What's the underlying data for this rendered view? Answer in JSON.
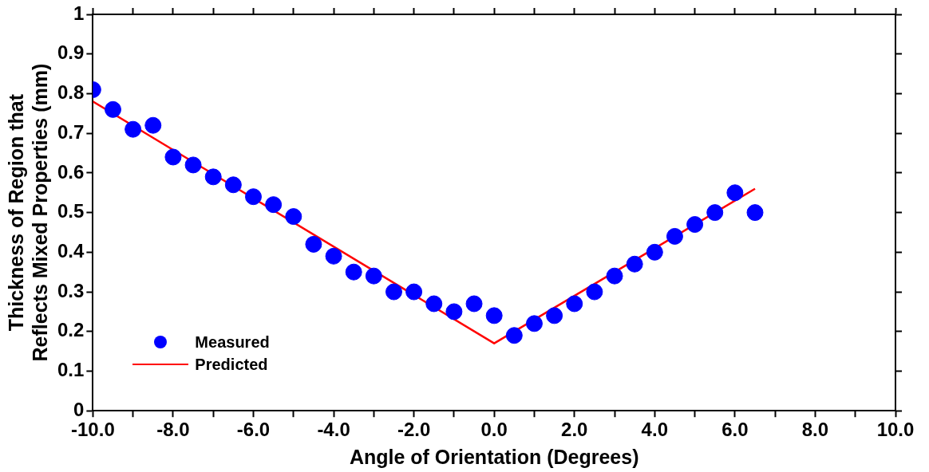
{
  "chart_data": {
    "type": "scatter",
    "xlabel": "Angle of Orientation (Degrees)",
    "ylabel": "Thickness of Region that\nReflects Mixed Properties (mm)",
    "xlim": [
      -10,
      10
    ],
    "xticks": [
      {
        "value": -10,
        "label": "-10.0"
      },
      {
        "value": -9,
        "label": null
      },
      {
        "value": -8,
        "label": "-8.0"
      },
      {
        "value": -7,
        "label": null
      },
      {
        "value": -6,
        "label": "-6.0"
      },
      {
        "value": -5,
        "label": null
      },
      {
        "value": -4,
        "label": "-4.0"
      },
      {
        "value": -3,
        "label": null
      },
      {
        "value": -2,
        "label": "-2.0"
      },
      {
        "value": -1,
        "label": null
      },
      {
        "value": 0,
        "label": "0.0"
      },
      {
        "value": 1,
        "label": null
      },
      {
        "value": 2,
        "label": "2.0"
      },
      {
        "value": 3,
        "label": null
      },
      {
        "value": 4,
        "label": "4.0"
      },
      {
        "value": 5,
        "label": null
      },
      {
        "value": 6,
        "label": "6.0"
      },
      {
        "value": 7,
        "label": null
      },
      {
        "value": 8,
        "label": "8.0"
      },
      {
        "value": 9,
        "label": null
      },
      {
        "value": 10,
        "label": "10.0"
      }
    ],
    "ylim": [
      0,
      1
    ],
    "yticks": [
      0,
      0.1,
      0.2,
      0.3,
      0.4,
      0.5,
      0.6,
      0.7,
      0.8,
      0.9,
      1
    ],
    "grid": false,
    "legend": "bottom left",
    "series": [
      {
        "name": "Measured",
        "marker": "circle",
        "color": "#0000ff",
        "x": [
          -10,
          -9.5,
          -9,
          -8.5,
          -8,
          -7.5,
          -7,
          -6.5,
          -6,
          -5.5,
          -5,
          -4.5,
          -4,
          -3.5,
          -3,
          -2.5,
          -2,
          -1.5,
          -1,
          -0.5,
          0,
          0.5,
          1,
          1.5,
          2,
          2.5,
          3,
          3.5,
          4,
          4.5,
          5,
          5.5,
          6,
          6.5
        ],
        "values": [
          0.81,
          0.76,
          0.71,
          0.72,
          0.64,
          0.62,
          0.59,
          0.57,
          0.54,
          0.52,
          0.49,
          0.42,
          0.39,
          0.35,
          0.34,
          0.3,
          0.3,
          0.27,
          0.25,
          0.27,
          0.24,
          0.19,
          0.22,
          0.24,
          0.27,
          0.3,
          0.34,
          0.37,
          0.4,
          0.44,
          0.47,
          0.5,
          0.55,
          0.5
        ]
      },
      {
        "name": "Predicted",
        "type": "line",
        "marker": "none",
        "line_style": "solid",
        "color": "#ff0000",
        "x": [
          -10,
          0,
          6.5
        ],
        "values": [
          0.78,
          0.17,
          0.56
        ]
      }
    ]
  }
}
